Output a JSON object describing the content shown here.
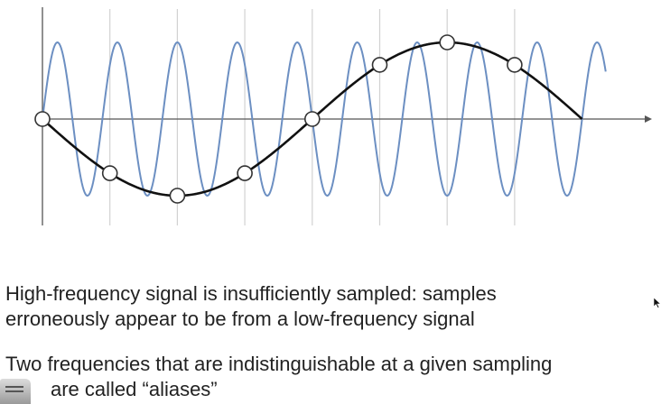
{
  "captions": {
    "point1": {
      "line1": "High-frequency signal is insufficiently sampled: samples",
      "line2": "erroneously appear to be from a low-frequency signal"
    },
    "point2": {
      "line1": "Two frequencies that are indistinguishable at a given sampling",
      "line2": "are called “aliases”"
    }
  },
  "chart_data": {
    "type": "line",
    "grid": "vertical lines at sample positions",
    "xlim": [
      0,
      8.35
    ],
    "ylim": [
      -1.3,
      1.5
    ],
    "sample_x": [
      0,
      1,
      2,
      3,
      4,
      5,
      6,
      7
    ],
    "series": [
      {
        "color": "#6c8fc2",
        "cycles_per_sample": 1.125,
        "phase": 0,
        "amplitude": 1.0,
        "x_range": [
          0,
          8.35
        ]
      },
      {
        "color": "#111111",
        "cycles_per_sample": 0.125,
        "phase": 0,
        "amplitude": 1.0,
        "x_range": [
          0,
          8
        ]
      }
    ],
    "samples": [
      {
        "x": 0,
        "y": 0.0
      },
      {
        "x": 1,
        "y": -0.707
      },
      {
        "x": 2,
        "y": -1.0
      },
      {
        "x": 3,
        "y": -0.707
      },
      {
        "x": 4,
        "y": 0.0
      },
      {
        "x": 5,
        "y": 0.707
      },
      {
        "x": 6,
        "y": 1.0
      },
      {
        "x": 7,
        "y": 0.707
      }
    ]
  }
}
